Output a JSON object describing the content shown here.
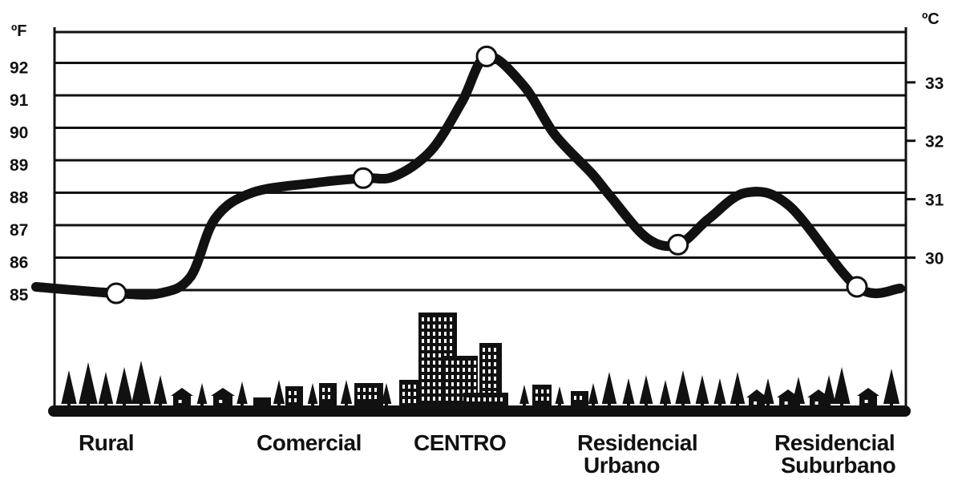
{
  "chart_data": {
    "type": "line",
    "title": "",
    "left_axis": {
      "unit": "ºF",
      "ticks": [
        85,
        86,
        87,
        88,
        89,
        90,
        91,
        92
      ],
      "range": [
        84.9,
        92.95
      ]
    },
    "right_axis": {
      "unit": "ºC",
      "ticks": [
        30,
        31,
        32,
        33
      ]
    },
    "categories": [
      {
        "lines": [
          "Rural"
        ],
        "x": 0
      },
      {
        "lines": [
          "Comercial"
        ],
        "x": 2
      },
      {
        "lines": [
          "CENTRO"
        ],
        "x": 3
      },
      {
        "lines": [
          "Residencial",
          "Urbano"
        ],
        "x": 4
      },
      {
        "lines": [
          "Residencial",
          "Suburbano"
        ],
        "x": 6
      }
    ],
    "series": [
      {
        "x": [
          -0.65,
          0,
          0.35,
          0.6,
          0.8,
          1.1,
          1.6,
          2.0,
          2.25,
          2.55,
          2.8,
          3.0,
          3.3,
          3.55,
          3.85,
          4.0,
          4.3,
          4.55,
          4.8,
          5.1,
          5.45,
          6.0,
          6.35
        ],
        "y": [
          85.1,
          84.9,
          84.9,
          85.4,
          87.2,
          88.0,
          88.3,
          88.45,
          88.5,
          89.3,
          90.8,
          92.2,
          91.3,
          89.8,
          88.6,
          87.9,
          86.6,
          86.4,
          87.2,
          88.0,
          87.6,
          85.1,
          85.05
        ],
        "marked": [
          1,
          7,
          11,
          17,
          21
        ]
      }
    ],
    "grid": true
  }
}
